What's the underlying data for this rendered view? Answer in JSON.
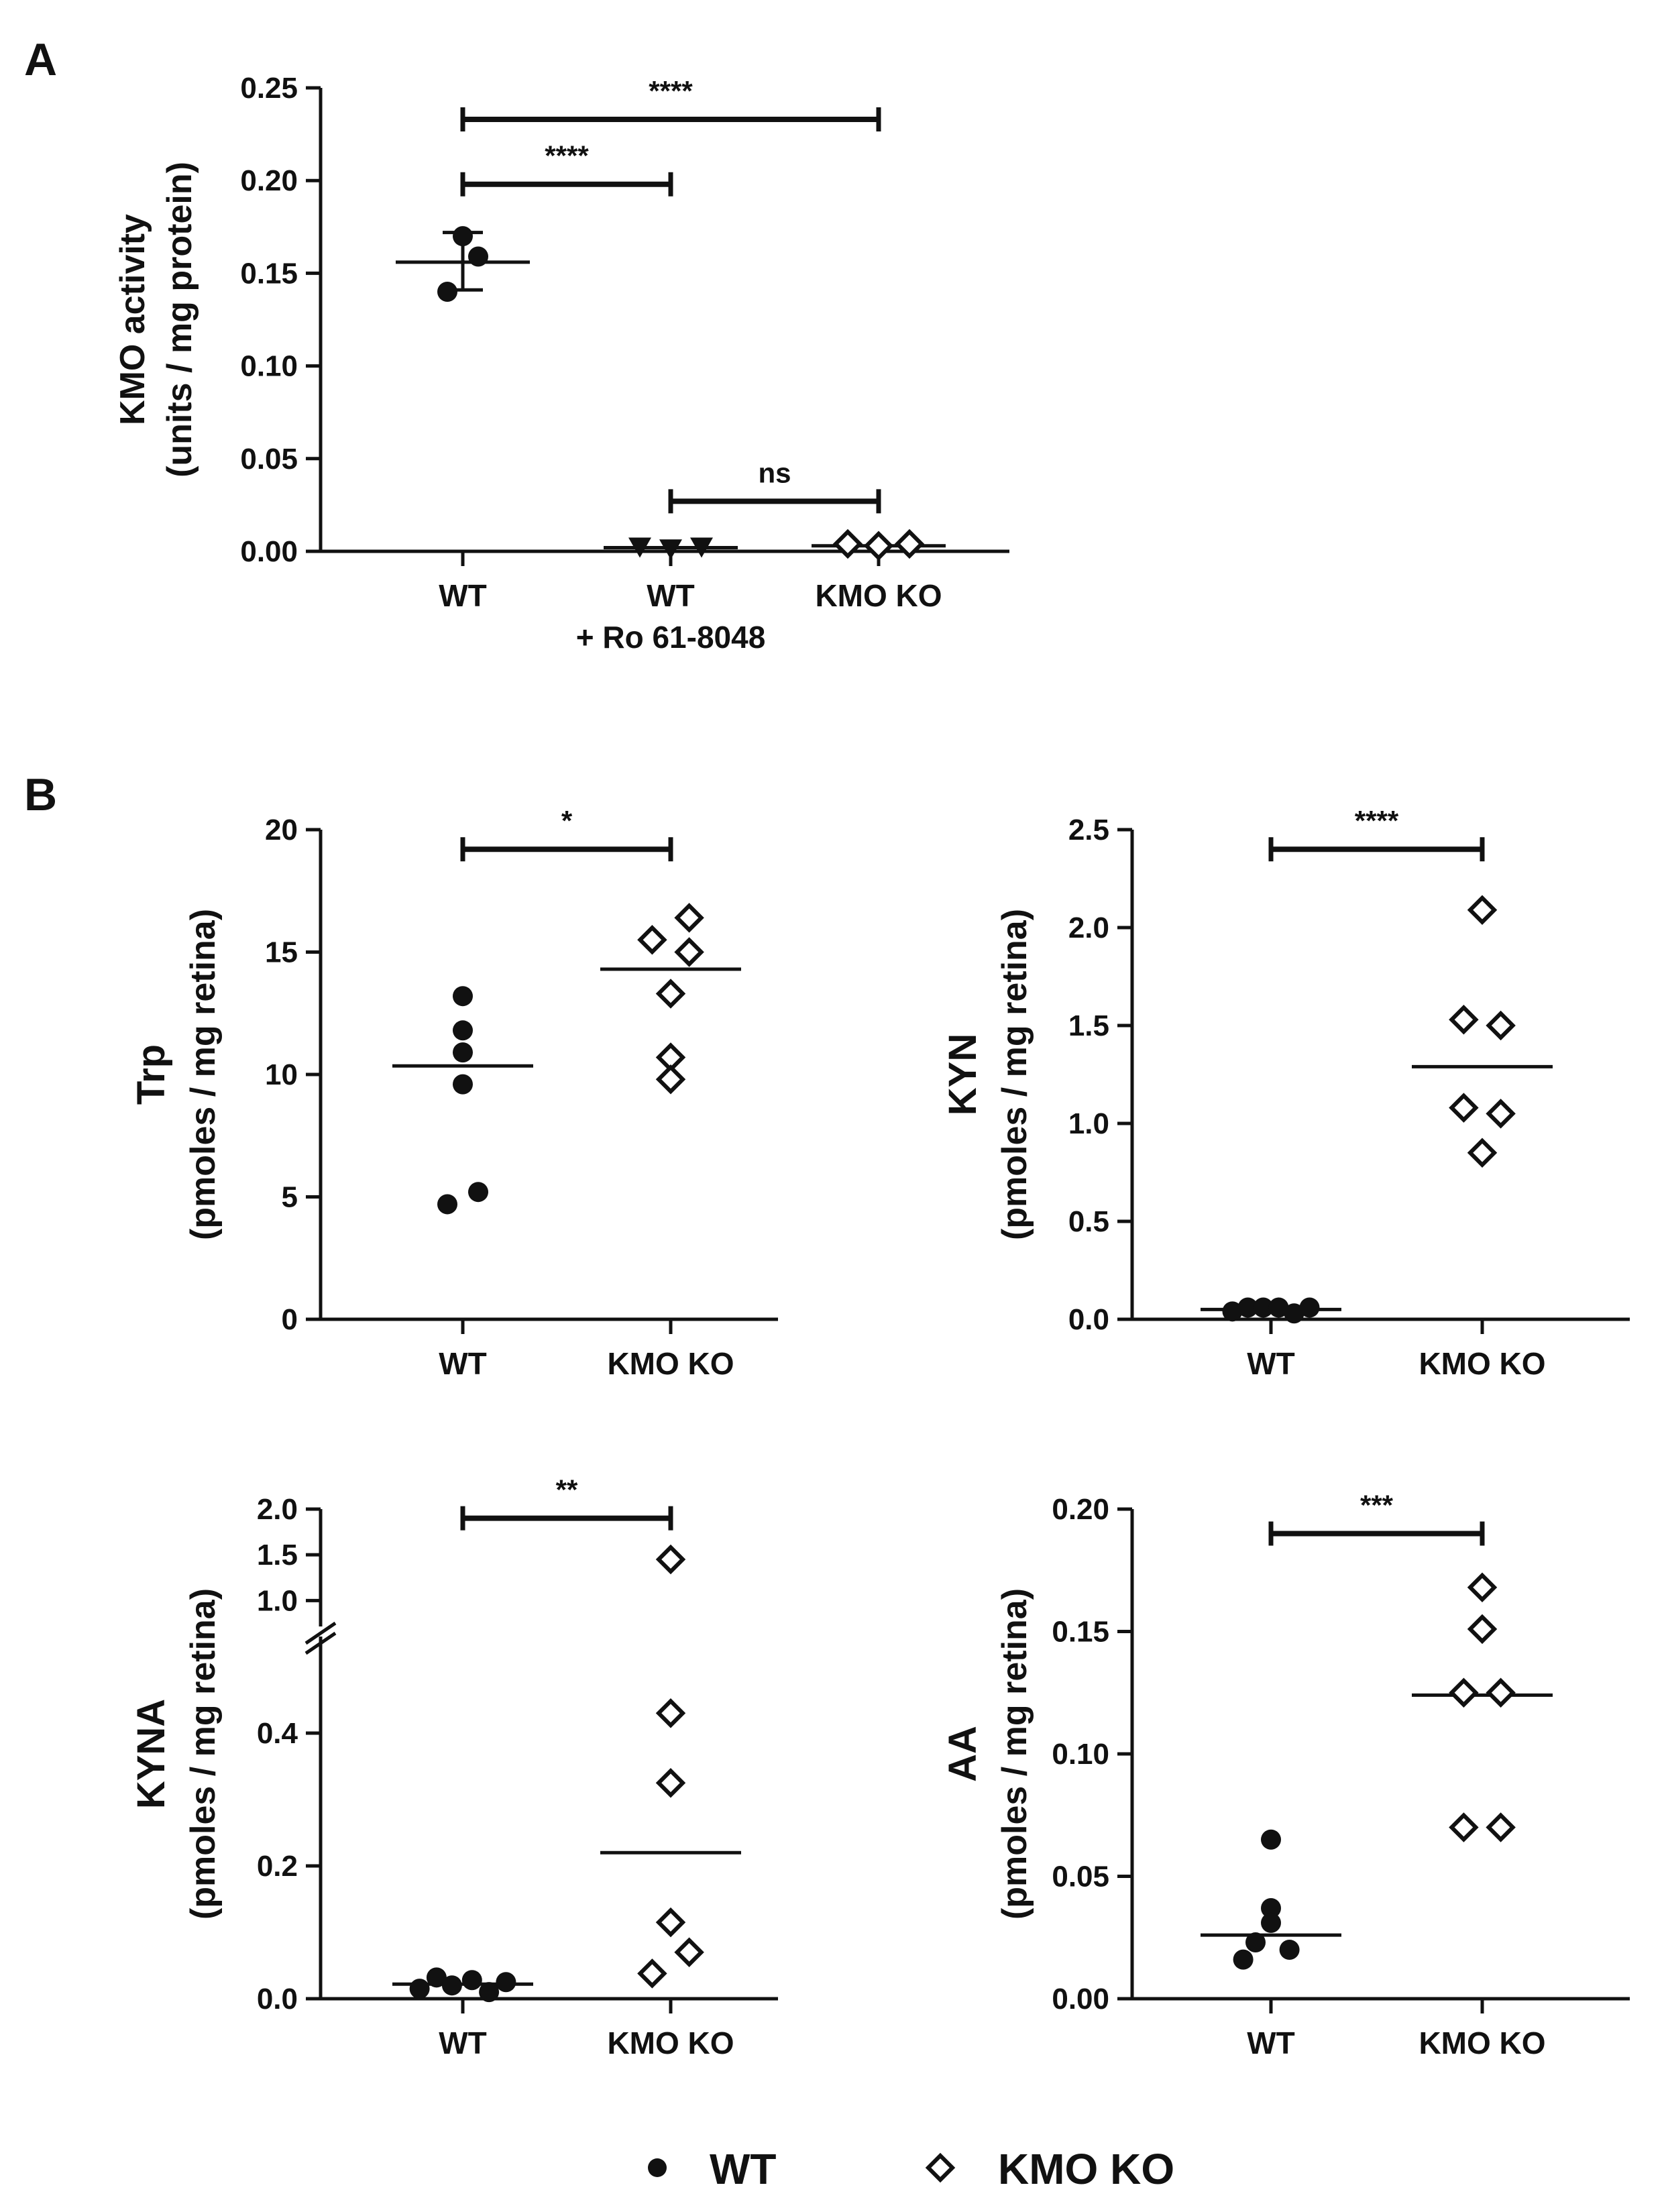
{
  "panel_labels": {
    "a": "A",
    "b": "B"
  },
  "colors": {
    "ink": "#111111",
    "wt_marker": "#111111",
    "ko_marker_fill": "#ffffff"
  },
  "legend": [
    {
      "marker": "circle-filled",
      "label": "WT"
    },
    {
      "marker": "diamond-open",
      "label": "KMO KO"
    }
  ],
  "chart_data": [
    {
      "id": "A",
      "type": "scatter",
      "title": "",
      "ylabel_line1": "KMO activity",
      "ylabel_line2": "(units / mg protein)",
      "ylim": [
        0,
        0.25
      ],
      "yticks": [
        "0.00",
        "0.05",
        "0.10",
        "0.15",
        "0.20",
        "0.25"
      ],
      "categories": [
        "WT",
        "WT\n+ Ro 61-8048",
        "KMO KO"
      ],
      "category_labels": [
        [
          "WT"
        ],
        [
          "WT",
          "+ Ro 61-8048"
        ],
        [
          "KMO KO"
        ]
      ],
      "series": [
        {
          "name": "WT",
          "marker": "circle-filled",
          "points": [
            [
              -0.1,
              0.14
            ],
            [
              0.0,
              0.17
            ],
            [
              0.1,
              0.159
            ]
          ],
          "center": 0.156,
          "error": [
            0.141,
            0.172
          ]
        },
        {
          "name": "WT + Ro 61-8048",
          "marker": "triangle-down-filled",
          "points": [
            [
              -0.2,
              0.002
            ],
            [
              0.0,
              0.001
            ],
            [
              0.2,
              0.002
            ]
          ],
          "center": 0.002
        },
        {
          "name": "KMO KO",
          "marker": "diamond-open",
          "points": [
            [
              -0.2,
              0.004
            ],
            [
              0.0,
              0.003
            ],
            [
              0.2,
              0.004
            ]
          ],
          "center": 0.003
        }
      ],
      "significance": [
        {
          "from": 0,
          "to": 1,
          "y": 0.198,
          "label": "****"
        },
        {
          "from": 0,
          "to": 2,
          "y": 0.233,
          "label": "****"
        },
        {
          "from": 1,
          "to": 2,
          "y": 0.027,
          "label": "ns"
        }
      ]
    },
    {
      "id": "B-Trp",
      "type": "scatter",
      "ylabel_line1": "Trp",
      "ylabel_line2": "(pmoles / mg retina)",
      "ylim": [
        0,
        20
      ],
      "yticks": [
        "0",
        "5",
        "10",
        "15",
        "20"
      ],
      "categories": [
        "WT",
        "KMO KO"
      ],
      "series": [
        {
          "name": "WT",
          "marker": "circle-filled",
          "points": [
            [
              0.0,
              13.2
            ],
            [
              0.0,
              11.8
            ],
            [
              0.0,
              10.9
            ],
            [
              0.0,
              9.6
            ],
            [
              0.1,
              5.2
            ],
            [
              -0.1,
              4.7
            ]
          ],
          "center": 10.35
        },
        {
          "name": "KMO KO",
          "marker": "diamond-open",
          "points": [
            [
              0.12,
              16.4
            ],
            [
              -0.12,
              15.5
            ],
            [
              0.12,
              15.0
            ],
            [
              0.0,
              13.3
            ],
            [
              0.0,
              10.7
            ],
            [
              0.0,
              9.8
            ]
          ],
          "center": 14.3
        }
      ],
      "significance": [
        {
          "from": 0,
          "to": 1,
          "y": 19.2,
          "label": "*"
        }
      ]
    },
    {
      "id": "B-KYN",
      "type": "scatter",
      "ylabel_line1": "KYN",
      "ylabel_line2": "(pmoles / mg retina)",
      "ylim": [
        0,
        2.5
      ],
      "yticks": [
        "0.0",
        "0.5",
        "1.0",
        "1.5",
        "2.0",
        "2.5"
      ],
      "categories": [
        "WT",
        "KMO KO"
      ],
      "series": [
        {
          "name": "WT",
          "marker": "circle-filled",
          "points": [
            [
              -0.25,
              0.04
            ],
            [
              -0.15,
              0.06
            ],
            [
              -0.05,
              0.06
            ],
            [
              0.05,
              0.06
            ],
            [
              0.15,
              0.03
            ],
            [
              0.25,
              0.06
            ]
          ],
          "center": 0.05
        },
        {
          "name": "KMO KO",
          "marker": "diamond-open",
          "points": [
            [
              0.0,
              2.09
            ],
            [
              -0.12,
              1.53
            ],
            [
              0.12,
              1.5
            ],
            [
              -0.12,
              1.08
            ],
            [
              0.12,
              1.05
            ],
            [
              0.0,
              0.85
            ]
          ],
          "center": 1.29
        }
      ],
      "significance": [
        {
          "from": 0,
          "to": 1,
          "y": 2.4,
          "label": "****"
        }
      ]
    },
    {
      "id": "B-KYNA",
      "type": "scatter",
      "ylabel_line1": "KYNA",
      "ylabel_line2": "(pmoles / mg retina)",
      "ylim": [
        0,
        2.0
      ],
      "axis_break": {
        "lower": [
          0,
          0.5
        ],
        "upper": [
          0.9,
          2.0
        ]
      },
      "yticks_lower": [
        "0.0",
        "0.2",
        "0.4"
      ],
      "yticks_upper": [
        "1.0",
        "1.5",
        "2.0"
      ],
      "categories": [
        "WT",
        "KMO KO"
      ],
      "series": [
        {
          "name": "WT",
          "marker": "circle-filled",
          "points": [
            [
              -0.28,
              0.015
            ],
            [
              -0.17,
              0.032
            ],
            [
              -0.07,
              0.02
            ],
            [
              0.06,
              0.028
            ],
            [
              0.17,
              0.01
            ],
            [
              0.28,
              0.025
            ]
          ],
          "center": 0.022
        },
        {
          "name": "KMO KO",
          "marker": "diamond-open",
          "points": [
            [
              0.0,
              1.45
            ],
            [
              0.0,
              0.43
            ],
            [
              0.0,
              0.325
            ],
            [
              0.0,
              0.115
            ],
            [
              -0.12,
              0.038
            ],
            [
              0.12,
              0.07
            ]
          ],
          "center": 0.22
        }
      ],
      "significance": [
        {
          "from": 0,
          "to": 1,
          "y": 1.9,
          "label": "**"
        }
      ]
    },
    {
      "id": "B-AA",
      "type": "scatter",
      "ylabel_line1": "AA",
      "ylabel_line2": "(pmoles / mg retina)",
      "ylim": [
        0,
        0.2
      ],
      "yticks": [
        "0.00",
        "0.05",
        "0.10",
        "0.15",
        "0.20"
      ],
      "categories": [
        "WT",
        "KMO KO"
      ],
      "series": [
        {
          "name": "WT",
          "marker": "circle-filled",
          "points": [
            [
              0.0,
              0.065
            ],
            [
              0.0,
              0.037
            ],
            [
              0.0,
              0.031
            ],
            [
              -0.1,
              0.023
            ],
            [
              0.12,
              0.02
            ],
            [
              -0.18,
              0.016
            ]
          ],
          "center": 0.026
        },
        {
          "name": "KMO KO",
          "marker": "diamond-open",
          "points": [
            [
              0.0,
              0.168
            ],
            [
              0.0,
              0.151
            ],
            [
              -0.12,
              0.125
            ],
            [
              0.12,
              0.125
            ],
            [
              -0.12,
              0.07
            ],
            [
              0.12,
              0.07
            ]
          ],
          "center": 0.124
        }
      ],
      "significance": [
        {
          "from": 0,
          "to": 1,
          "y": 0.19,
          "label": "***"
        }
      ]
    }
  ]
}
